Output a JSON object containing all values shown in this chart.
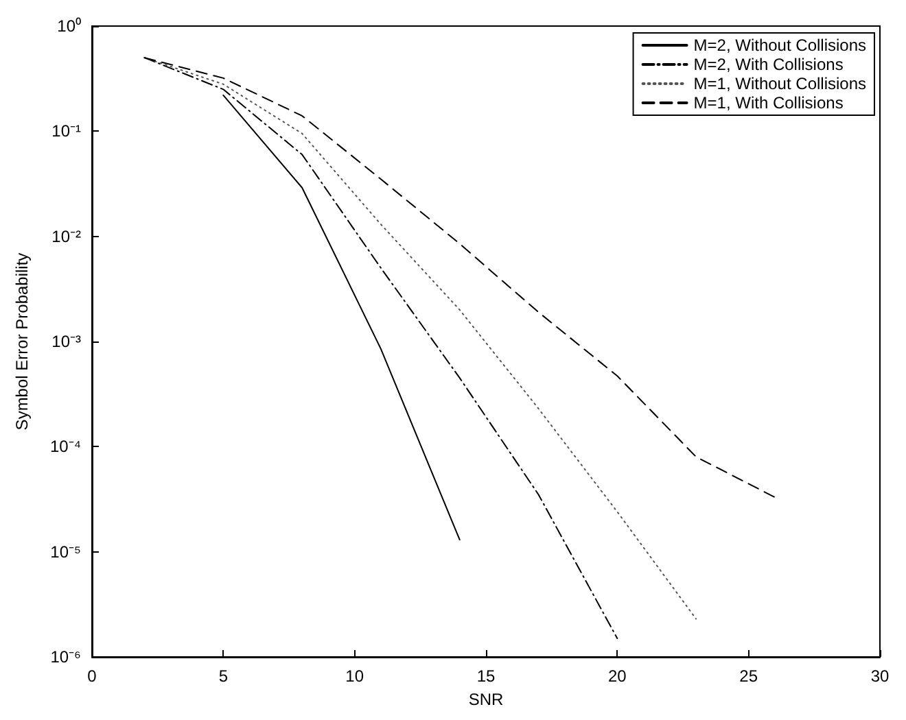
{
  "chart_data": {
    "type": "line",
    "xlabel": "SNR",
    "ylabel": "Symbol Error Probability",
    "xlim": [
      0,
      30
    ],
    "xticks": [
      0,
      5,
      10,
      15,
      20,
      25,
      30
    ],
    "ylim": [
      1e-06,
      1
    ],
    "log": "y",
    "yticks": [
      {
        "value": 1e-06,
        "label": "10⁻⁶"
      },
      {
        "value": 1e-05,
        "label": "10⁻⁵"
      },
      {
        "value": 0.0001,
        "label": "10⁻⁴"
      },
      {
        "value": 0.001,
        "label": "10⁻³"
      },
      {
        "value": 0.01,
        "label": "10⁻²"
      },
      {
        "value": 0.1,
        "label": "10⁻¹"
      },
      {
        "value": 1,
        "label": "10⁰"
      }
    ],
    "legend": "top right",
    "grid": false,
    "marker": "none",
    "series": [
      {
        "name": "M=2, Without Collisions",
        "color": "#000000",
        "line_style": "solid",
        "x": [
          5,
          8,
          11,
          14
        ],
        "values": [
          0.22,
          0.029,
          0.00085,
          1.3e-05
        ]
      },
      {
        "name": "M=2, With Collisions",
        "color": "#000000",
        "line_style": "dashdot",
        "x": [
          2,
          5,
          8,
          11,
          14,
          17,
          20
        ],
        "values": [
          0.5,
          0.25,
          0.06,
          0.005,
          0.00045,
          3.5e-05,
          1.5e-06
        ]
      },
      {
        "name": "M=1, Without Collisions",
        "color": "#555555",
        "line_style": "dotted",
        "x": [
          2,
          5,
          8,
          11,
          14,
          17,
          20,
          23
        ],
        "values": [
          0.5,
          0.28,
          0.095,
          0.013,
          0.002,
          0.00023,
          2.4e-05,
          2.3e-06
        ]
      },
      {
        "name": "M=1, With Collisions",
        "color": "#000000",
        "line_style": "dashed",
        "x": [
          2,
          5,
          8,
          11,
          14,
          17,
          20,
          23,
          26
        ],
        "values": [
          0.5,
          0.32,
          0.14,
          0.035,
          0.0085,
          0.0019,
          0.00047,
          8e-05,
          3.3e-05
        ]
      }
    ]
  }
}
